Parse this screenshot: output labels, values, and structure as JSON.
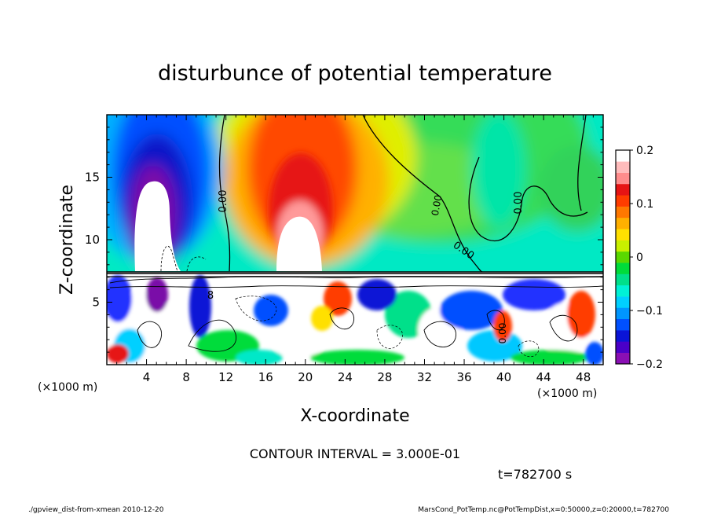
{
  "chart_data": {
    "type": "heatmap",
    "title": "disturbunce of potential temperature",
    "xlabel": "X-coordinate",
    "ylabel": "Z-coordinate",
    "x_unit_left": "(×1000 m)",
    "x_unit_right": "(×1000 m)",
    "x_ticks": [
      "4",
      "8",
      "12",
      "16",
      "20",
      "24",
      "28",
      "32",
      "36",
      "40",
      "44",
      "48"
    ],
    "x_tick_values": [
      4,
      8,
      12,
      16,
      20,
      24,
      28,
      32,
      36,
      40,
      44,
      48
    ],
    "xlim": [
      0,
      50
    ],
    "y_ticks": [
      "5",
      "10",
      "15"
    ],
    "y_tick_values": [
      5,
      10,
      15
    ],
    "ylim": [
      0,
      20
    ],
    "colorbar": {
      "ticks": [
        "0.2",
        "0.1",
        "0",
        "−0.1",
        "−0.2"
      ],
      "tick_values": [
        0.2,
        0.1,
        0,
        -0.1,
        -0.2
      ],
      "range": [
        -0.2,
        0.2
      ],
      "colors": [
        "#8a0fb4",
        "#4a00c8",
        "#0a14d6",
        "#0050ff",
        "#0096ff",
        "#00d0ff",
        "#00f2d6",
        "#00e08a",
        "#00dc3a",
        "#5ad800",
        "#c8f000",
        "#ffe000",
        "#ffb000",
        "#ff7800",
        "#ff3c00",
        "#e61414",
        "#ff8c8c",
        "#ffbcbc",
        "#ffffff"
      ]
    },
    "contour_labels": [
      "0.00",
      "0.00",
      "0.00",
      "0.00",
      "8",
      "0.00"
    ],
    "contour_interval_text": "CONTOUR INTERVAL = 3.000E-01",
    "time_text": "t=782700 s"
  },
  "footer": {
    "left": "./gpview_dist-from-xmean  2010-12-20",
    "right": "MarsCond_PotTemp.nc@PotTempDist,x=0:50000,z=0:20000,t=782700"
  }
}
